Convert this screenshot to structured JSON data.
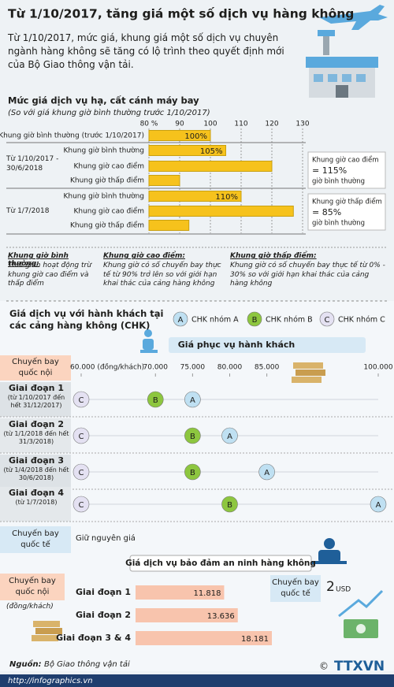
{
  "title": "Từ 1/10/2017, tăng giá một số dịch vụ hàng không",
  "intro": "Từ 1/10/2017, mức giá, khung giá một số dịch vụ chuyên ngành hàng không sẽ tăng có lộ trình theo quyết định mới của Bộ Giao thông vận tải.",
  "definitions": [
    {
      "title": "Khung giờ bình thường:",
      "text": "Thời gian hoạt động trừ khung giờ cao điểm và thấp điểm"
    },
    {
      "title": "Khung giờ cao điểm:",
      "text": "Khung giờ có số chuyến bay thực tế từ 90% trở lên so với giới hạn khai thác của cảng hàng không"
    },
    {
      "title": "Khung giờ thấp điểm:",
      "text": "Khung giờ có số chuyến bay thực tế từ 0% - 30% so với giới hạn khai thác của cảng hàng không"
    }
  ],
  "chart_data": [
    {
      "type": "bar",
      "title": "Mức giá dịch vụ hạ, cất cánh máy bay",
      "subtitle": "(So với giá khung giờ bình thường trước 1/10/2017)",
      "categories": [
        "Khung giờ bình thường (trước 1/10/2017)",
        "Khung giờ bình thường",
        "Khung giờ cao điểm",
        "Khung giờ thấp điểm",
        "Khung giờ bình thường",
        "Khung giờ cao điểm",
        "Khung giờ thấp điểm"
      ],
      "groups": [
        "Từ 1/10/2017 - 30/6/2018",
        "Từ 1/7/2018"
      ],
      "values": [
        100,
        105,
        120,
        90,
        110,
        127,
        93
      ],
      "value_labels": [
        "100%",
        "105%",
        null,
        null,
        "110%",
        null,
        null
      ],
      "color": "#f6c21c",
      "xlim": [
        80,
        130
      ],
      "xticks": [
        {
          "value": 80,
          "label": "80 %"
        },
        90,
        100,
        110,
        120,
        130
      ],
      "grid": true,
      "notes": [
        {
          "title": "Khung giờ cao điểm",
          "value": "= 115%",
          "text": "giờ bình thường"
        },
        {
          "title": "Khung giờ thấp điểm",
          "value": "= 85%",
          "text": "giờ bình thường"
        }
      ]
    },
    {
      "type": "dot",
      "title": "Giá dịch vụ với hành khách tại các cảng hàng không (CHK)",
      "subtitle": "Giá phục vụ hành khách",
      "row_header": "Chuyến bay quốc nội",
      "categories": [
        "Giai đoạn 1",
        "Giai đoạn 2",
        "Giai đoạn 3",
        "Giai đoạn 4"
      ],
      "category_notes": [
        "(từ 1/10/2017 đến hết 31/12/2017)",
        "(từ 1/1/2018 đến hết 31/3/2018)",
        "(từ 1/4/2018 đến hết 30/6/2018)",
        "(từ 1/7/2018)"
      ],
      "series": [
        {
          "name": "CHK nhóm A",
          "marker": "A",
          "color": "#bfe0f2",
          "values": [
            75000,
            80000,
            85000,
            100000
          ]
        },
        {
          "name": "CHK nhóm B",
          "marker": "B",
          "color": "#8dc63f",
          "values": [
            70000,
            75000,
            75000,
            80000
          ]
        },
        {
          "name": "CHK nhóm C",
          "marker": "C",
          "color": "#e4e1f2",
          "values": [
            60000,
            60000,
            60000,
            60000
          ]
        }
      ],
      "xlim": [
        60000,
        100000
      ],
      "xticks": [
        {
          "value": 60000,
          "label": "60.000 (đồng/khách)"
        },
        {
          "value": 70000,
          "label": "70.000"
        },
        {
          "value": 75000,
          "label": "75.000"
        },
        {
          "value": 80000,
          "label": "80.000"
        },
        {
          "value": 85000,
          "label": "85.000"
        },
        {
          "value": 100000,
          "label": "100.000"
        }
      ],
      "international": {
        "label": "Chuyến bay quốc tế",
        "text": "Giữ nguyên giá"
      }
    },
    {
      "type": "bar",
      "title": "Giá dịch vụ bảo đảm an ninh hàng không",
      "row_header": "Chuyến bay quốc nội",
      "unit_note": "(đồng/khách)",
      "categories": [
        "Giai đoạn 1",
        "Giai đoạn 2",
        "Giai đoạn 3 & 4"
      ],
      "values": [
        11818,
        13636,
        18181
      ],
      "value_labels": [
        "11.818",
        "13.636",
        "18.181"
      ],
      "color": "#f8c4ad",
      "international": {
        "label": "Chuyến bay quốc tế",
        "value": 2,
        "unit": "USD"
      }
    }
  ],
  "source": {
    "label": "Nguồn:",
    "text": "Bộ Giao thông vận tải"
  },
  "url": "http://infographics.vn",
  "logo": "TTXVN",
  "copyright": "©"
}
